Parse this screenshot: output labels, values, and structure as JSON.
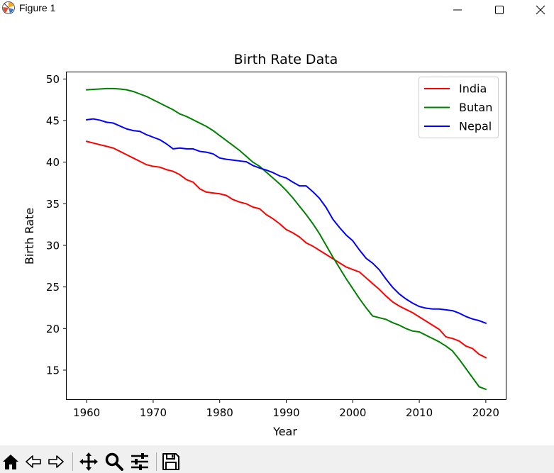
{
  "window": {
    "title": "Figure 1",
    "icons": [
      "matplotlib-logo-icon",
      "minimize-icon",
      "maximize-icon",
      "close-icon"
    ]
  },
  "toolbar": {
    "buttons": [
      "home-icon",
      "back-icon",
      "forward-icon",
      "pan-icon",
      "zoom-icon",
      "configure-subplots-icon",
      "save-icon"
    ]
  },
  "chart_data": {
    "type": "line",
    "title": "Birth Rate Data",
    "xlabel": "Year",
    "ylabel": "Birth Rate",
    "xlim": [
      1957,
      2023
    ],
    "ylim": [
      11.5,
      50.8
    ],
    "xticks": [
      1960,
      1970,
      1980,
      1990,
      2000,
      2010,
      2020
    ],
    "yticks": [
      15,
      20,
      25,
      30,
      35,
      40,
      45,
      50
    ],
    "grid": false,
    "legend_position": "top-right",
    "x": [
      1960,
      1961,
      1962,
      1963,
      1964,
      1965,
      1966,
      1967,
      1968,
      1969,
      1970,
      1971,
      1972,
      1973,
      1974,
      1975,
      1976,
      1977,
      1978,
      1979,
      1980,
      1981,
      1982,
      1983,
      1984,
      1985,
      1986,
      1987,
      1988,
      1989,
      1990,
      1991,
      1992,
      1993,
      1994,
      1995,
      1996,
      1997,
      1998,
      1999,
      2000,
      2001,
      2002,
      2003,
      2004,
      2005,
      2006,
      2007,
      2008,
      2009,
      2010,
      2011,
      2012,
      2013,
      2014,
      2015,
      2016,
      2017,
      2018,
      2019,
      2020
    ],
    "series": [
      {
        "name": "India",
        "color": "#ff0000",
        "values": [
          42.5,
          42.3,
          42.1,
          41.9,
          41.7,
          41.3,
          40.9,
          40.5,
          40.1,
          39.7,
          39.5,
          39.4,
          39.1,
          38.9,
          38.5,
          37.9,
          37.6,
          36.8,
          36.4,
          36.3,
          36.2,
          36.0,
          35.5,
          35.2,
          35.0,
          34.6,
          34.4,
          33.7,
          33.2,
          32.6,
          31.9,
          31.5,
          31.0,
          30.3,
          29.9,
          29.4,
          28.9,
          28.4,
          27.9,
          27.4,
          27.1,
          26.8,
          26.1,
          25.4,
          24.7,
          23.9,
          23.2,
          22.7,
          22.3,
          21.9,
          21.4,
          20.9,
          20.4,
          19.9,
          19.0,
          18.8,
          18.5,
          17.9,
          17.6,
          16.9,
          16.5
        ]
      },
      {
        "name": "Butan",
        "color": "#008000",
        "values": [
          48.7,
          48.75,
          48.8,
          48.85,
          48.85,
          48.8,
          48.7,
          48.5,
          48.2,
          47.9,
          47.5,
          47.1,
          46.7,
          46.3,
          45.8,
          45.5,
          45.1,
          44.7,
          44.3,
          43.8,
          43.2,
          42.6,
          42.0,
          41.4,
          40.7,
          40.0,
          39.5,
          38.8,
          38.1,
          37.4,
          36.6,
          35.7,
          34.7,
          33.7,
          32.6,
          31.4,
          30.0,
          28.6,
          27.3,
          26.0,
          24.8,
          23.6,
          22.5,
          21.5,
          21.3,
          21.1,
          20.7,
          20.4,
          20.0,
          19.7,
          19.6,
          19.2,
          18.8,
          18.4,
          17.9,
          17.3,
          16.3,
          15.2,
          14.1,
          13.0,
          12.7
        ]
      },
      {
        "name": "Nepal",
        "color": "#0000ff",
        "values": [
          45.1,
          45.2,
          45.05,
          44.8,
          44.7,
          44.35,
          44.0,
          43.8,
          43.7,
          43.3,
          43.0,
          42.7,
          42.2,
          41.6,
          41.7,
          41.6,
          41.6,
          41.3,
          41.2,
          41.0,
          40.5,
          40.35,
          40.25,
          40.15,
          40.05,
          39.6,
          39.3,
          39.05,
          38.75,
          38.35,
          38.1,
          37.6,
          37.15,
          37.15,
          36.45,
          35.65,
          34.55,
          33.15,
          32.15,
          31.25,
          30.55,
          29.45,
          28.45,
          27.85,
          27.05,
          25.95,
          24.95,
          24.15,
          23.55,
          23.05,
          22.65,
          22.45,
          22.35,
          22.35,
          22.25,
          22.15,
          21.85,
          21.45,
          21.15,
          20.95,
          20.65
        ]
      }
    ]
  }
}
